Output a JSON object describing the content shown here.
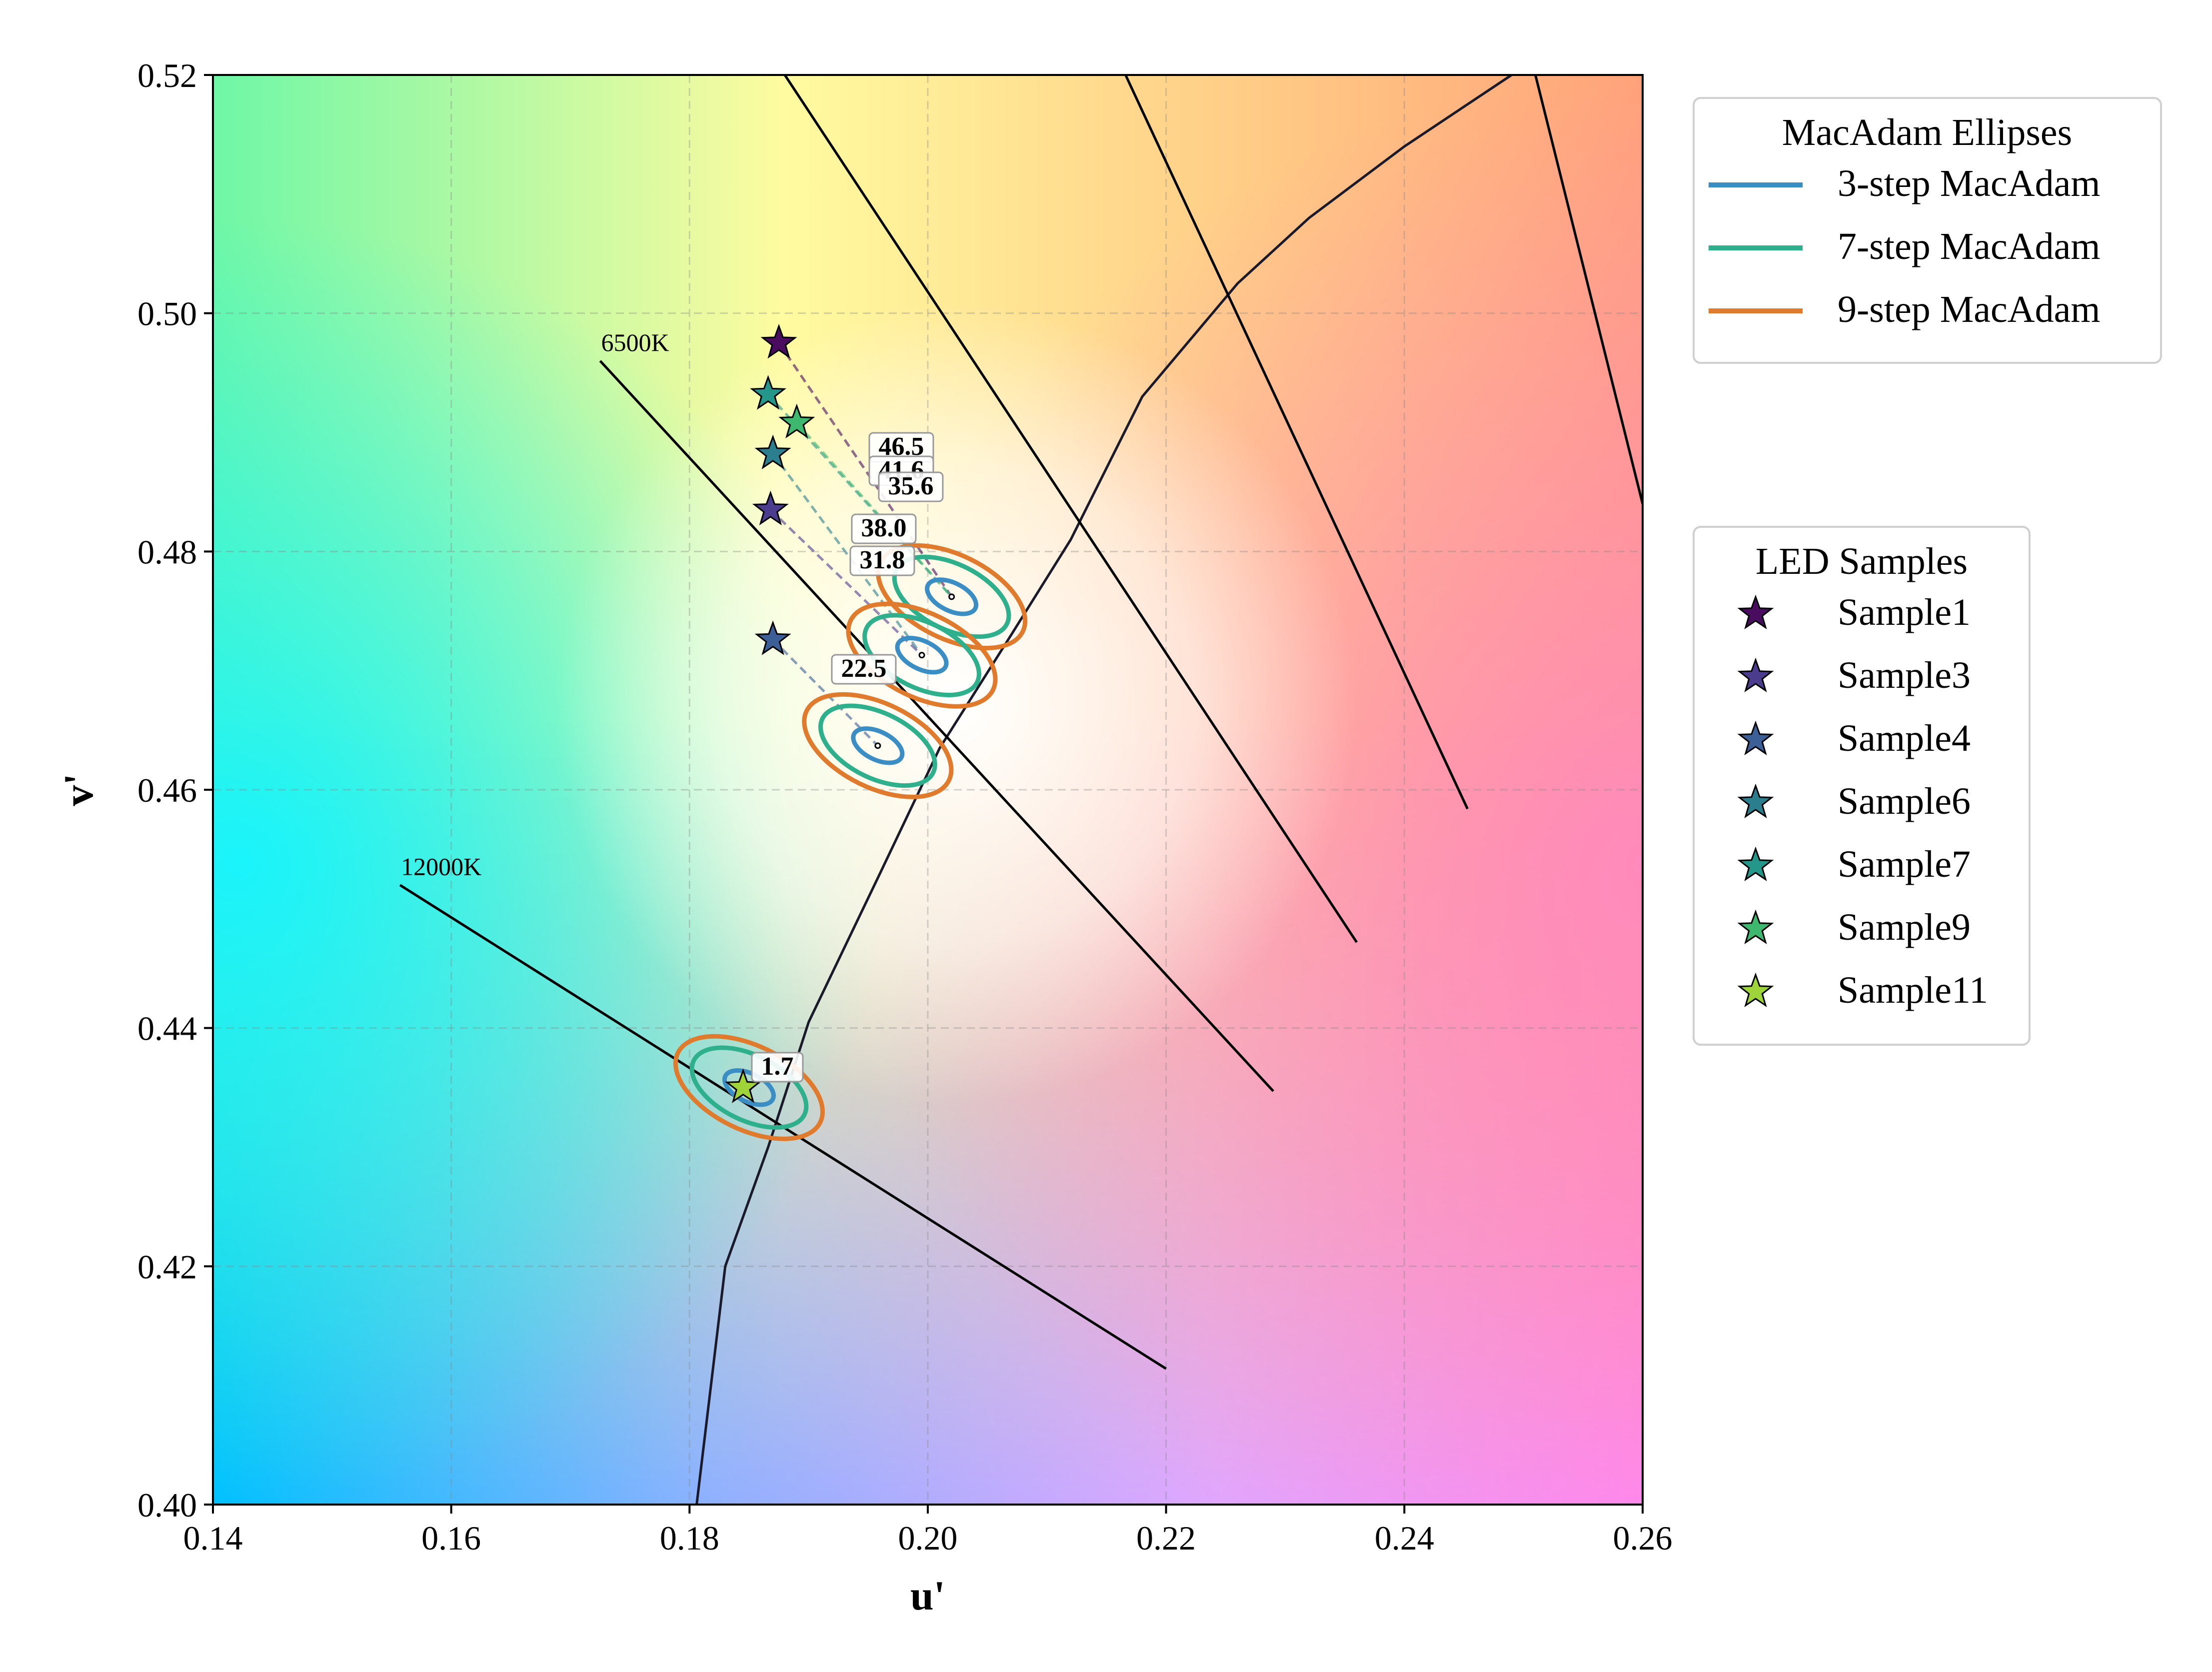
{
  "chart_data": {
    "type": "scatter",
    "xlabel": "u'",
    "ylabel": "v'",
    "xlim": [
      0.14,
      0.26
    ],
    "ylim": [
      0.4,
      0.52
    ],
    "xticks": [
      "0.14",
      "0.16",
      "0.18",
      "0.20",
      "0.22",
      "0.24",
      "0.26"
    ],
    "yticks": [
      "0.40",
      "0.42",
      "0.44",
      "0.46",
      "0.48",
      "0.50",
      "0.52"
    ],
    "grid": true,
    "background": "CIE 1976 u'v' chromaticity color gradient",
    "planckian_locus": [
      [
        0.1806,
        0.4
      ],
      [
        0.183,
        0.42
      ],
      [
        0.1866,
        0.43
      ],
      [
        0.19,
        0.4405
      ],
      [
        0.196,
        0.453
      ],
      [
        0.201,
        0.4635
      ],
      [
        0.207,
        0.473
      ],
      [
        0.212,
        0.481
      ],
      [
        0.218,
        0.493
      ],
      [
        0.226,
        0.5025
      ],
      [
        0.232,
        0.508
      ],
      [
        0.24,
        0.514
      ],
      [
        0.249,
        0.52
      ]
    ],
    "isotemperature_lines": [
      {
        "label": "12000K",
        "points": [
          [
            0.1557,
            0.452
          ],
          [
            0.22,
            0.4114
          ]
        ]
      },
      {
        "label": "6500K",
        "points": [
          [
            0.1725,
            0.496
          ],
          [
            0.229,
            0.4347
          ]
        ]
      },
      {
        "label": "",
        "points": [
          [
            0.188,
            0.52
          ],
          [
            0.236,
            0.4472
          ]
        ]
      },
      {
        "label": "",
        "points": [
          [
            0.2166,
            0.52
          ],
          [
            0.2453,
            0.4584
          ]
        ]
      },
      {
        "label": "",
        "points": [
          [
            0.251,
            0.52
          ],
          [
            0.26,
            0.484
          ]
        ]
      }
    ],
    "ellipse_legend": {
      "title": "MacAdam Ellipses",
      "entries": [
        {
          "label": "3-step MacAdam",
          "color": "#3a8ec4"
        },
        {
          "label": "7-step MacAdam",
          "color": "#2fb08c"
        },
        {
          "label": "9-step MacAdam",
          "color": "#e07b2e"
        }
      ]
    },
    "ellipses": [
      {
        "center": [
          0.202,
          0.4762
        ],
        "steps": [
          3,
          7,
          9
        ]
      },
      {
        "center": [
          0.1995,
          0.4713
        ],
        "steps": [
          3,
          7,
          9
        ]
      },
      {
        "center": [
          0.1958,
          0.4637
        ],
        "steps": [
          3,
          7,
          9
        ]
      },
      {
        "center": [
          0.185,
          0.435
        ],
        "steps": [
          3,
          7,
          9
        ]
      }
    ],
    "samples_legend_title": "LED Samples",
    "samples": [
      {
        "name": "Sample1",
        "u": 0.1875,
        "v": 0.4975,
        "color": "#4a0c5e",
        "label": "46.5",
        "target": [
          0.202,
          0.4762
        ]
      },
      {
        "name": "Sample3",
        "u": 0.1868,
        "v": 0.4835,
        "color": "#4b3c8e",
        "label": "31.8",
        "target": [
          0.1995,
          0.4713
        ]
      },
      {
        "name": "Sample4",
        "u": 0.187,
        "v": 0.4726,
        "color": "#3b5f96",
        "label": "22.5",
        "target": [
          0.1958,
          0.4637
        ]
      },
      {
        "name": "Sample6",
        "u": 0.187,
        "v": 0.4882,
        "color": "#2b7e8e",
        "label": "38.0",
        "target": [
          0.1995,
          0.4713
        ]
      },
      {
        "name": "Sample7",
        "u": 0.1866,
        "v": 0.4932,
        "color": "#24968a",
        "label": "41.6",
        "target": [
          0.202,
          0.4762
        ]
      },
      {
        "name": "Sample9",
        "u": 0.189,
        "v": 0.4908,
        "color": "#3db86e",
        "label": "35.6",
        "target": [
          0.202,
          0.4762
        ]
      },
      {
        "name": "Sample11",
        "u": 0.1845,
        "v": 0.435,
        "color": "#9fd33a",
        "label": "1.7",
        "target": [
          0.185,
          0.435
        ]
      }
    ]
  }
}
